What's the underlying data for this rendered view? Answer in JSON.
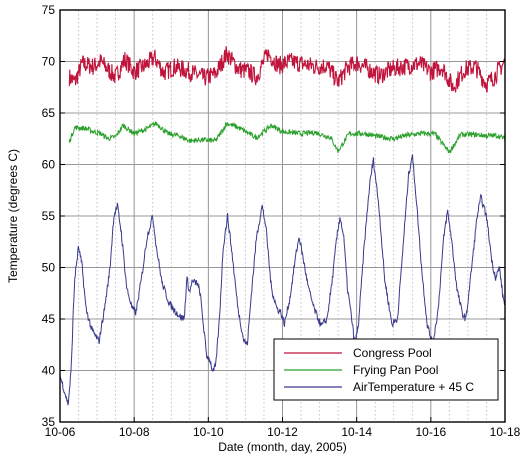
{
  "chart_data": {
    "type": "line",
    "title": "",
    "xlabel": "Date  (month, day, 2005)",
    "ylabel": "Temperature (degrees C)",
    "xlim": [
      0,
      12
    ],
    "ylim": [
      35,
      75
    ],
    "x_ticks": [
      {
        "value": 0,
        "label": "10-06"
      },
      {
        "value": 2,
        "label": "10-08"
      },
      {
        "value": 4,
        "label": "10-10"
      },
      {
        "value": 6,
        "label": "10-12"
      },
      {
        "value": 8,
        "label": "10-14"
      },
      {
        "value": 10,
        "label": "10-16"
      },
      {
        "value": 12,
        "label": "10-18"
      }
    ],
    "y_ticks": [
      35,
      40,
      45,
      50,
      55,
      60,
      65,
      70,
      75
    ],
    "grid": true,
    "legend_position": "bottom-right",
    "series": [
      {
        "name": "Congress Pool",
        "color": "#c0143c",
        "noise": 0.9,
        "points": [
          [
            0.25,
            68.5
          ],
          [
            0.4,
            68.0
          ],
          [
            0.6,
            69.8
          ],
          [
            0.9,
            69.5
          ],
          [
            1.1,
            70.0
          ],
          [
            1.3,
            69.2
          ],
          [
            1.5,
            68.5
          ],
          [
            1.75,
            70.2
          ],
          [
            2.0,
            69.0
          ],
          [
            2.3,
            69.6
          ],
          [
            2.55,
            70.4
          ],
          [
            2.8,
            68.9
          ],
          [
            3.1,
            69.5
          ],
          [
            3.5,
            69.0
          ],
          [
            3.9,
            68.4
          ],
          [
            4.2,
            68.8
          ],
          [
            4.5,
            70.8
          ],
          [
            4.8,
            69.3
          ],
          [
            5.1,
            69.0
          ],
          [
            5.3,
            68.5
          ],
          [
            5.6,
            70.8
          ],
          [
            5.9,
            69.6
          ],
          [
            6.2,
            70.0
          ],
          [
            6.5,
            69.8
          ],
          [
            6.9,
            69.5
          ],
          [
            7.2,
            69.6
          ],
          [
            7.5,
            68.0
          ],
          [
            7.75,
            69.4
          ],
          [
            8.0,
            69.9
          ],
          [
            8.3,
            69.3
          ],
          [
            8.6,
            68.6
          ],
          [
            8.9,
            69.2
          ],
          [
            9.1,
            69.4
          ],
          [
            9.4,
            69.6
          ],
          [
            9.7,
            69.8
          ],
          [
            10.0,
            69.0
          ],
          [
            10.3,
            69.5
          ],
          [
            10.6,
            67.5
          ],
          [
            10.9,
            69.2
          ],
          [
            11.2,
            69.5
          ],
          [
            11.5,
            67.8
          ],
          [
            11.7,
            68.5
          ],
          [
            12.0,
            70.0
          ]
        ]
      },
      {
        "name": "Frying Pan Pool",
        "color": "#2ca02c",
        "noise": 0.25,
        "points": [
          [
            0.25,
            62.2
          ],
          [
            0.4,
            63.6
          ],
          [
            0.7,
            63.5
          ],
          [
            0.9,
            63.2
          ],
          [
            1.1,
            63.0
          ],
          [
            1.3,
            62.5
          ],
          [
            1.5,
            62.7
          ],
          [
            1.7,
            63.8
          ],
          [
            2.0,
            63.0
          ],
          [
            2.3,
            63.4
          ],
          [
            2.6,
            64.0
          ],
          [
            2.9,
            63.0
          ],
          [
            3.2,
            62.8
          ],
          [
            3.5,
            62.3
          ],
          [
            3.8,
            62.4
          ],
          [
            4.2,
            62.3
          ],
          [
            4.5,
            64.0
          ],
          [
            4.8,
            63.6
          ],
          [
            5.1,
            63.0
          ],
          [
            5.3,
            62.6
          ],
          [
            5.7,
            63.8
          ],
          [
            6.0,
            63.2
          ],
          [
            6.5,
            63.0
          ],
          [
            6.9,
            63.1
          ],
          [
            7.3,
            62.6
          ],
          [
            7.5,
            61.3
          ],
          [
            7.8,
            63.0
          ],
          [
            8.2,
            63.0
          ],
          [
            8.6,
            62.7
          ],
          [
            9.0,
            62.5
          ],
          [
            9.3,
            62.8
          ],
          [
            9.7,
            63.0
          ],
          [
            10.1,
            63.0
          ],
          [
            10.5,
            61.2
          ],
          [
            10.8,
            62.9
          ],
          [
            11.2,
            62.9
          ],
          [
            11.5,
            62.8
          ],
          [
            11.8,
            62.8
          ],
          [
            12.0,
            62.5
          ]
        ]
      },
      {
        "name": "AirTemperature + 45 C",
        "color": "#3a3a8c",
        "noise": 0.35,
        "points": [
          [
            0.0,
            39.5
          ],
          [
            0.12,
            38.0
          ],
          [
            0.22,
            36.7
          ],
          [
            0.3,
            40.0
          ],
          [
            0.35,
            45.0
          ],
          [
            0.4,
            49.0
          ],
          [
            0.5,
            52.0
          ],
          [
            0.6,
            50.0
          ],
          [
            0.7,
            46.0
          ],
          [
            0.85,
            44.0
          ],
          [
            1.05,
            42.8
          ],
          [
            1.2,
            46.0
          ],
          [
            1.35,
            50.0
          ],
          [
            1.45,
            55.0
          ],
          [
            1.55,
            56.0
          ],
          [
            1.65,
            53.5
          ],
          [
            1.8,
            48.0
          ],
          [
            1.95,
            46.0
          ],
          [
            2.05,
            45.6
          ],
          [
            2.2,
            49.0
          ],
          [
            2.35,
            53.0
          ],
          [
            2.5,
            55.0
          ],
          [
            2.6,
            52.0
          ],
          [
            2.75,
            48.5
          ],
          [
            2.95,
            46.5
          ],
          [
            3.1,
            45.8
          ],
          [
            3.25,
            45.2
          ],
          [
            3.35,
            45.0
          ],
          [
            3.42,
            49.0
          ],
          [
            3.5,
            47.5
          ],
          [
            3.55,
            48.6
          ],
          [
            3.7,
            48.5
          ],
          [
            3.78,
            47.5
          ],
          [
            3.85,
            45.0
          ],
          [
            3.95,
            41.5
          ],
          [
            4.05,
            41.0
          ],
          [
            4.12,
            39.8
          ],
          [
            4.2,
            40.5
          ],
          [
            4.3,
            45.0
          ],
          [
            4.4,
            52.0
          ],
          [
            4.52,
            55.0
          ],
          [
            4.65,
            51.0
          ],
          [
            4.8,
            46.0
          ],
          [
            4.95,
            43.0
          ],
          [
            5.05,
            42.5
          ],
          [
            5.15,
            47.0
          ],
          [
            5.3,
            53.0
          ],
          [
            5.45,
            56.0
          ],
          [
            5.55,
            54.0
          ],
          [
            5.7,
            48.0
          ],
          [
            5.85,
            46.0
          ],
          [
            5.95,
            45.7
          ],
          [
            6.05,
            44.5
          ],
          [
            6.2,
            47.0
          ],
          [
            6.35,
            51.0
          ],
          [
            6.45,
            53.0
          ],
          [
            6.55,
            51.0
          ],
          [
            6.7,
            48.0
          ],
          [
            6.85,
            46.0
          ],
          [
            7.05,
            44.3
          ],
          [
            7.2,
            45.0
          ],
          [
            7.35,
            49.0
          ],
          [
            7.45,
            52.5
          ],
          [
            7.55,
            55.0
          ],
          [
            7.65,
            53.0
          ],
          [
            7.75,
            48.0
          ],
          [
            7.85,
            45.5
          ],
          [
            7.95,
            42.5
          ],
          [
            8.05,
            44.5
          ],
          [
            8.2,
            52.0
          ],
          [
            8.35,
            58.0
          ],
          [
            8.45,
            60.5
          ],
          [
            8.6,
            56.0
          ],
          [
            8.75,
            49.0
          ],
          [
            8.95,
            44.5
          ],
          [
            9.1,
            45.0
          ],
          [
            9.25,
            52.0
          ],
          [
            9.4,
            59.0
          ],
          [
            9.5,
            61.0
          ],
          [
            9.6,
            57.0
          ],
          [
            9.75,
            50.0
          ],
          [
            9.9,
            44.5
          ],
          [
            10.05,
            42.5
          ],
          [
            10.2,
            46.0
          ],
          [
            10.35,
            53.0
          ],
          [
            10.45,
            55.5
          ],
          [
            10.55,
            53.0
          ],
          [
            10.7,
            48.0
          ],
          [
            10.85,
            45.5
          ],
          [
            10.95,
            45.0
          ],
          [
            11.1,
            50.0
          ],
          [
            11.25,
            55.0
          ],
          [
            11.35,
            56.8
          ],
          [
            11.5,
            55.0
          ],
          [
            11.65,
            50.5
          ],
          [
            11.75,
            49.0
          ],
          [
            11.85,
            50.0
          ],
          [
            11.95,
            47.0
          ],
          [
            12.0,
            46.5
          ]
        ]
      }
    ]
  }
}
